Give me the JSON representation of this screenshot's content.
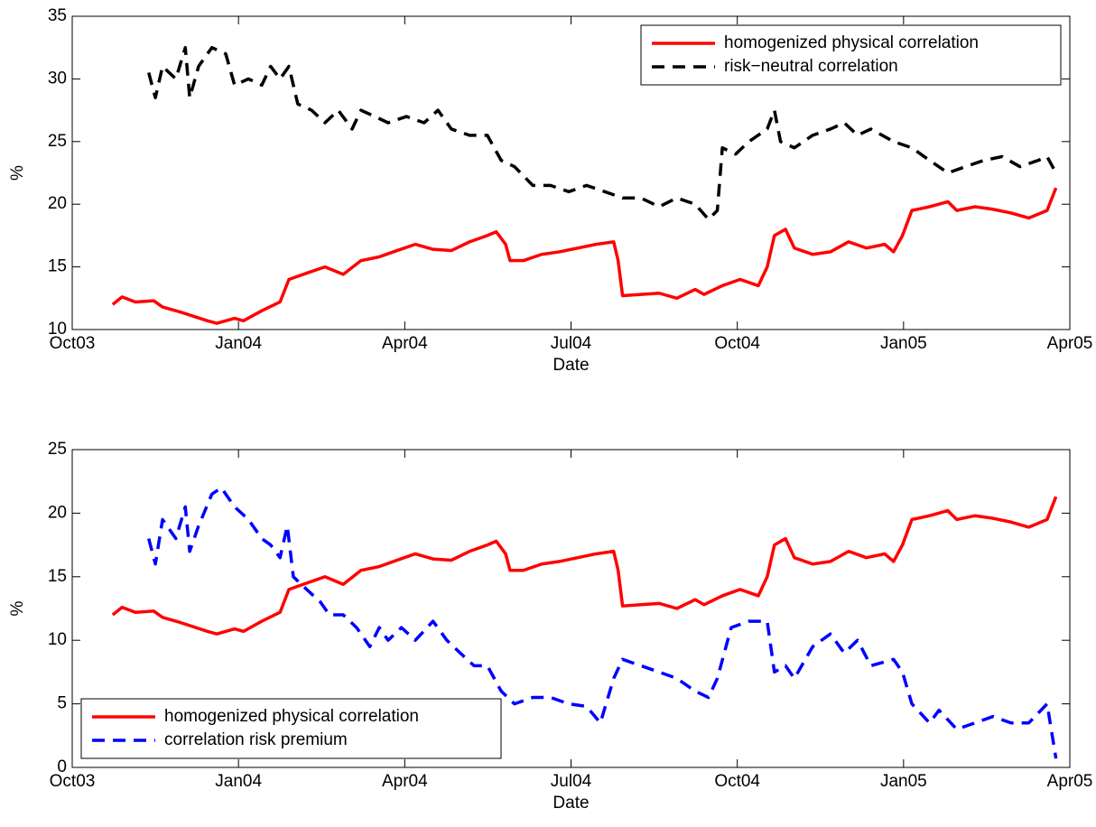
{
  "chart_data": [
    {
      "type": "line",
      "ylabel": "%",
      "xlabel": "Date",
      "xlim": [
        0,
        18
      ],
      "ylim": [
        10,
        35
      ],
      "xticks": [
        {
          "value": 0,
          "label": "Oct03"
        },
        {
          "value": 3,
          "label": "Jan04"
        },
        {
          "value": 6,
          "label": "Apr04"
        },
        {
          "value": 9,
          "label": "Jul04"
        },
        {
          "value": 12,
          "label": "Oct04"
        },
        {
          "value": 15,
          "label": "Jan05"
        },
        {
          "value": 18,
          "label": "Apr05"
        }
      ],
      "yticks": [
        10,
        15,
        20,
        25,
        30,
        35
      ],
      "legend": "upper right",
      "series": [
        {
          "name": "homogenized physical correlation",
          "color": "#ff0000",
          "linestyle": "solid",
          "x": [
            0.73,
            0.9,
            1.14,
            1.47,
            1.63,
            1.95,
            2.44,
            2.61,
            2.93,
            3.09,
            3.42,
            3.75,
            3.91,
            4.23,
            4.56,
            4.89,
            5.21,
            5.54,
            5.86,
            6.19,
            6.51,
            6.84,
            7.17,
            7.49,
            7.65,
            7.82,
            7.9,
            8.14,
            8.47,
            8.79,
            9.12,
            9.45,
            9.77,
            9.85,
            9.93,
            10.26,
            10.59,
            10.91,
            11.24,
            11.4,
            11.73,
            12.05,
            12.38,
            12.54,
            12.67,
            12.87,
            13.03,
            13.36,
            13.68,
            14.01,
            14.33,
            14.66,
            14.82,
            14.98,
            15.15,
            15.47,
            15.8,
            15.96,
            16.29,
            16.61,
            16.94,
            17.26,
            17.59,
            17.75
          ],
          "values": [
            12.0,
            12.6,
            12.2,
            12.3,
            11.8,
            11.4,
            10.7,
            10.5,
            10.9,
            10.7,
            11.5,
            12.2,
            14.0,
            14.5,
            15.0,
            14.4,
            15.5,
            15.8,
            16.3,
            16.8,
            16.4,
            16.3,
            17.0,
            17.5,
            17.8,
            16.8,
            15.5,
            15.5,
            16.0,
            16.2,
            16.5,
            16.8,
            17.0,
            15.5,
            12.7,
            12.8,
            12.9,
            12.5,
            13.2,
            12.8,
            13.5,
            14.0,
            13.5,
            15.0,
            17.5,
            18.0,
            16.5,
            16.0,
            16.2,
            17.0,
            16.5,
            16.8,
            16.2,
            17.5,
            19.5,
            19.8,
            20.2,
            19.5,
            19.8,
            19.6,
            19.3,
            18.9,
            19.5,
            21.3
          ]
        },
        {
          "name": "risk−neutral correlation",
          "color": "#000000",
          "linestyle": "dashed",
          "x": [
            1.38,
            1.5,
            1.63,
            1.87,
            2.04,
            2.12,
            2.28,
            2.52,
            2.77,
            2.93,
            3.18,
            3.42,
            3.58,
            3.75,
            3.91,
            4.07,
            4.32,
            4.56,
            4.8,
            5.05,
            5.21,
            5.46,
            5.7,
            6.03,
            6.35,
            6.6,
            6.84,
            7.17,
            7.49,
            7.74,
            7.98,
            8.31,
            8.63,
            8.96,
            9.28,
            9.61,
            9.93,
            10.26,
            10.59,
            10.91,
            11.24,
            11.48,
            11.64,
            11.73,
            11.97,
            12.21,
            12.54,
            12.67,
            12.78,
            13.03,
            13.36,
            13.68,
            13.93,
            14.17,
            14.41,
            14.82,
            15.15,
            15.47,
            15.8,
            16.12,
            16.45,
            16.78,
            17.1,
            17.43,
            17.59,
            17.75
          ],
          "values": [
            30.5,
            28.5,
            31,
            30,
            32.5,
            28.5,
            31,
            32.5,
            32,
            29.5,
            30,
            29.5,
            31,
            30,
            31,
            28,
            27.5,
            26.5,
            27.5,
            26,
            27.5,
            27,
            26.5,
            27,
            26.5,
            27.5,
            26,
            25.5,
            25.5,
            23.5,
            23,
            21.5,
            21.5,
            21,
            21.5,
            21,
            20.5,
            20.5,
            19.8,
            20.5,
            20,
            18.8,
            19.5,
            24.5,
            24,
            25,
            26,
            27.5,
            25,
            24.5,
            25.5,
            26,
            26.5,
            25.5,
            26,
            25,
            24.5,
            23.5,
            22.5,
            23,
            23.5,
            23.8,
            23,
            23.5,
            23.8,
            22.5
          ]
        }
      ]
    },
    {
      "type": "line",
      "ylabel": "%",
      "xlabel": "Date",
      "xlim": [
        0,
        18
      ],
      "ylim": [
        0,
        25
      ],
      "xticks": [
        {
          "value": 0,
          "label": "Oct03"
        },
        {
          "value": 3,
          "label": "Jan04"
        },
        {
          "value": 6,
          "label": "Apr04"
        },
        {
          "value": 9,
          "label": "Jul04"
        },
        {
          "value": 12,
          "label": "Oct04"
        },
        {
          "value": 15,
          "label": "Jan05"
        },
        {
          "value": 18,
          "label": "Apr05"
        }
      ],
      "yticks": [
        0,
        5,
        10,
        15,
        20,
        25
      ],
      "legend": "lower left",
      "series": [
        {
          "name": "homogenized physical correlation",
          "color": "#ff0000",
          "linestyle": "solid",
          "x": [
            0.73,
            0.9,
            1.14,
            1.47,
            1.63,
            1.95,
            2.44,
            2.61,
            2.93,
            3.09,
            3.42,
            3.75,
            3.91,
            4.23,
            4.56,
            4.89,
            5.21,
            5.54,
            5.86,
            6.19,
            6.51,
            6.84,
            7.17,
            7.49,
            7.65,
            7.82,
            7.9,
            8.14,
            8.47,
            8.79,
            9.12,
            9.45,
            9.77,
            9.85,
            9.93,
            10.26,
            10.59,
            10.91,
            11.24,
            11.4,
            11.73,
            12.05,
            12.38,
            12.54,
            12.67,
            12.87,
            13.03,
            13.36,
            13.68,
            14.01,
            14.33,
            14.66,
            14.82,
            14.98,
            15.15,
            15.47,
            15.8,
            15.96,
            16.29,
            16.61,
            16.94,
            17.26,
            17.59,
            17.75
          ],
          "values": [
            12.0,
            12.6,
            12.2,
            12.3,
            11.8,
            11.4,
            10.7,
            10.5,
            10.9,
            10.7,
            11.5,
            12.2,
            14.0,
            14.5,
            15.0,
            14.4,
            15.5,
            15.8,
            16.3,
            16.8,
            16.4,
            16.3,
            17.0,
            17.5,
            17.8,
            16.8,
            15.5,
            15.5,
            16.0,
            16.2,
            16.5,
            16.8,
            17.0,
            15.5,
            12.7,
            12.8,
            12.9,
            12.5,
            13.2,
            12.8,
            13.5,
            14.0,
            13.5,
            15.0,
            17.5,
            18.0,
            16.5,
            16.0,
            16.2,
            17.0,
            16.5,
            16.8,
            16.2,
            17.5,
            19.5,
            19.8,
            20.2,
            19.5,
            19.8,
            19.6,
            19.3,
            18.9,
            19.5,
            21.3
          ]
        },
        {
          "name": "correlation risk premium",
          "color": "#0000ff",
          "linestyle": "dashed",
          "x": [
            1.38,
            1.5,
            1.63,
            1.87,
            2.04,
            2.12,
            2.28,
            2.52,
            2.69,
            2.93,
            3.18,
            3.42,
            3.58,
            3.75,
            3.88,
            3.99,
            4.23,
            4.48,
            4.64,
            4.89,
            5.13,
            5.37,
            5.54,
            5.7,
            5.94,
            6.19,
            6.51,
            6.76,
            7.0,
            7.25,
            7.49,
            7.74,
            7.98,
            8.31,
            8.63,
            8.96,
            9.28,
            9.53,
            9.77,
            9.93,
            10.26,
            10.59,
            10.91,
            11.24,
            11.48,
            11.64,
            11.89,
            12.21,
            12.54,
            12.67,
            12.87,
            13.03,
            13.36,
            13.68,
            13.93,
            14.17,
            14.41,
            14.82,
            14.98,
            15.15,
            15.47,
            15.64,
            15.96,
            16.29,
            16.61,
            16.94,
            17.26,
            17.59,
            17.75
          ],
          "values": [
            18,
            16,
            19.5,
            18,
            20.5,
            17,
            19,
            21.5,
            22,
            20.5,
            19.5,
            18,
            17.5,
            16.5,
            19,
            15,
            14,
            13,
            12,
            12,
            11,
            9.5,
            11,
            10,
            11,
            10,
            11.5,
            10,
            9,
            8,
            8,
            6,
            5,
            5.5,
            5.5,
            5,
            4.8,
            3.5,
            7,
            8.5,
            8,
            7.5,
            7,
            6,
            5.5,
            7,
            11,
            11.5,
            11.5,
            7.5,
            8,
            7,
            9.5,
            10.5,
            9,
            10,
            8,
            8.5,
            7.5,
            5,
            3.5,
            4.5,
            3,
            3.5,
            4,
            3.5,
            3.5,
            5,
            0.7
          ]
        }
      ]
    }
  ]
}
